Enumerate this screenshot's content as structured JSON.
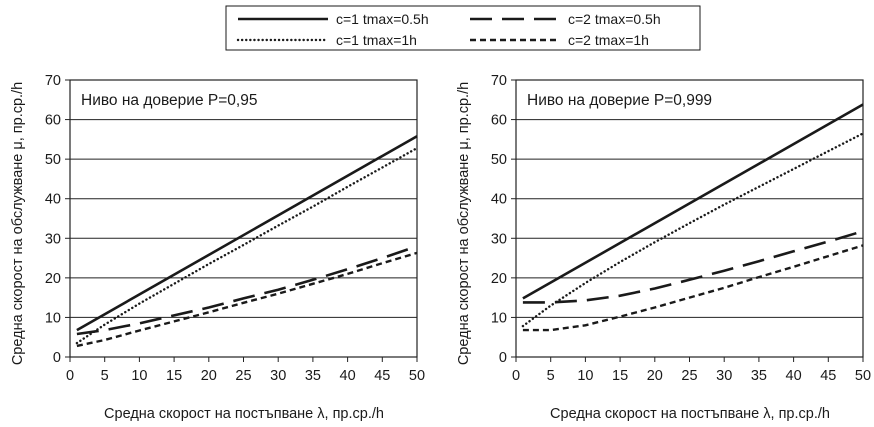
{
  "legend": [
    {
      "label": "c=1  tmax=0.5h",
      "dash": "solid"
    },
    {
      "label": "c=2  tmax=0.5h",
      "dash": "long"
    },
    {
      "label": "c=1  tmax=1h",
      "dash": "dotted"
    },
    {
      "label": "c=2  tmax=1h",
      "dash": "short"
    }
  ],
  "chart_data": [
    {
      "type": "line",
      "annotation": "Ниво на доверие P=0,95",
      "xlabel": "Средна скорост на постъпване λ, пр.ср./h",
      "ylabel": "Средна скорост на обслужване μ, пр.ср./h",
      "xlim": [
        0,
        50
      ],
      "ylim": [
        0,
        70
      ],
      "xticks": [
        "0",
        "5",
        "10",
        "15",
        "20",
        "25",
        "30",
        "35",
        "40",
        "45",
        "50"
      ],
      "yticks": [
        "0",
        "10",
        "20",
        "30",
        "40",
        "50",
        "60",
        "70"
      ],
      "grid": "horizontal",
      "series": [
        {
          "name": "c=1  tmax=0.5h",
          "dash": "solid",
          "x": [
            1,
            50
          ],
          "y": [
            6.8,
            55.8
          ]
        },
        {
          "name": "c=2  tmax=0.5h",
          "dash": "long",
          "x": [
            1,
            5,
            10,
            15,
            20,
            25,
            30,
            35,
            40,
            45,
            50
          ],
          "y": [
            5.8,
            6.8,
            8.5,
            10.5,
            12.5,
            14.8,
            17.0,
            19.5,
            22.2,
            25.0,
            28.0
          ]
        },
        {
          "name": "c=1  tmax=1h",
          "dash": "dotted",
          "x": [
            1,
            5,
            10,
            15,
            20,
            25,
            30,
            35,
            40,
            45,
            50
          ],
          "y": [
            3.5,
            8.2,
            13.5,
            18.5,
            23.5,
            28.3,
            33.2,
            38.0,
            43.0,
            47.9,
            52.8
          ]
        },
        {
          "name": "c=2  tmax=1h",
          "dash": "short",
          "x": [
            1,
            5,
            10,
            15,
            20,
            25,
            30,
            35,
            40,
            45,
            50
          ],
          "y": [
            2.8,
            4.3,
            6.7,
            9.0,
            11.3,
            13.7,
            16.0,
            18.5,
            21.0,
            23.7,
            26.3
          ]
        }
      ]
    },
    {
      "type": "line",
      "annotation": "Ниво на доверие P=0,999",
      "xlabel": "Средна скорост на постъпване λ, пр.ср./h",
      "ylabel": "Средна скорост на обслужване μ, пр.ср./h",
      "xlim": [
        0,
        50
      ],
      "ylim": [
        0,
        70
      ],
      "xticks": [
        "0",
        "5",
        "10",
        "15",
        "20",
        "25",
        "30",
        "35",
        "40",
        "45",
        "50"
      ],
      "yticks": [
        "0",
        "10",
        "20",
        "30",
        "40",
        "50",
        "60",
        "70"
      ],
      "grid": "horizontal",
      "series": [
        {
          "name": "c=1  tmax=0.5h",
          "dash": "solid",
          "x": [
            1,
            50
          ],
          "y": [
            14.8,
            63.8
          ]
        },
        {
          "name": "c=2  tmax=0.5h",
          "dash": "long",
          "x": [
            1,
            5,
            10,
            15,
            20,
            25,
            30,
            35,
            40,
            45,
            50
          ],
          "y": [
            13.8,
            13.8,
            14.3,
            15.5,
            17.3,
            19.5,
            21.8,
            24.2,
            26.7,
            29.2,
            31.8
          ]
        },
        {
          "name": "c=1  tmax=1h",
          "dash": "dotted",
          "x": [
            1,
            5,
            10,
            15,
            20,
            25,
            30,
            35,
            40,
            45,
            50
          ],
          "y": [
            7.8,
            13.0,
            18.7,
            24.0,
            29.0,
            33.8,
            38.5,
            43.0,
            47.5,
            52.0,
            56.5
          ]
        },
        {
          "name": "c=2  tmax=1h",
          "dash": "short",
          "x": [
            1,
            5,
            10,
            15,
            20,
            25,
            30,
            35,
            40,
            45,
            50
          ],
          "y": [
            6.8,
            6.8,
            8.0,
            10.2,
            12.5,
            15.0,
            17.5,
            20.2,
            22.8,
            25.5,
            28.2
          ]
        }
      ]
    }
  ]
}
